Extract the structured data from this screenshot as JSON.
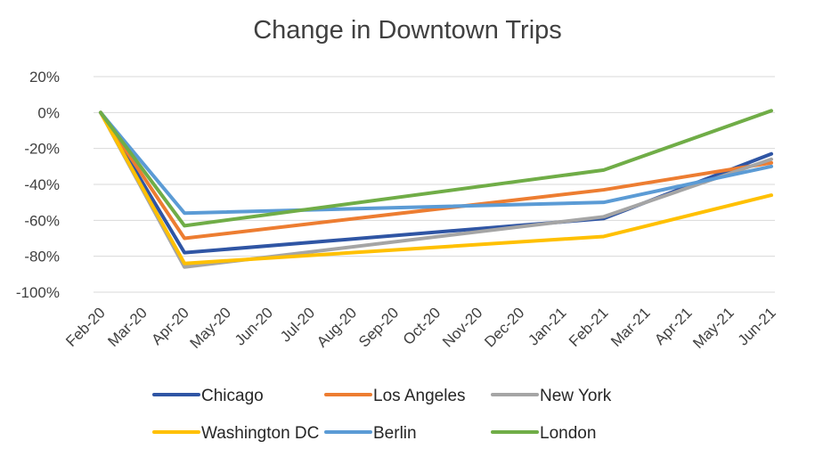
{
  "chart_data": {
    "type": "line",
    "title": "Change in Downtown Trips",
    "xlabel": "",
    "ylabel": "",
    "x": [
      "Feb-20",
      "Mar-20",
      "Apr-20",
      "May-20",
      "Jun-20",
      "Jul-20",
      "Aug-20",
      "Sep-20",
      "Oct-20",
      "Nov-20",
      "Dec-20",
      "Jan-21",
      "Feb-21",
      "Mar-21",
      "Apr-21",
      "May-21",
      "Jun-21"
    ],
    "y_ticks": [
      "20%",
      "0%",
      "-20%",
      "-40%",
      "-60%",
      "-80%",
      "-100%"
    ],
    "ylim": [
      -100,
      20
    ],
    "grid": true,
    "legend_position": "bottom",
    "series": [
      {
        "name": "Chicago",
        "color": "#2F55A4",
        "points": [
          [
            0,
            0
          ],
          [
            2,
            -78
          ],
          [
            12,
            -59
          ],
          [
            16,
            -23
          ]
        ]
      },
      {
        "name": "Los Angeles",
        "color": "#ED7D31",
        "points": [
          [
            0,
            0
          ],
          [
            2,
            -70
          ],
          [
            12,
            -43
          ],
          [
            16,
            -28
          ]
        ]
      },
      {
        "name": "New York",
        "color": "#A5A5A5",
        "points": [
          [
            0,
            0
          ],
          [
            2,
            -86
          ],
          [
            12,
            -58
          ],
          [
            16,
            -26
          ]
        ]
      },
      {
        "name": "Washington DC",
        "color": "#FFC000",
        "points": [
          [
            0,
            0
          ],
          [
            2,
            -84
          ],
          [
            12,
            -69
          ],
          [
            16,
            -46
          ]
        ]
      },
      {
        "name": "Berlin",
        "color": "#5B9BD5",
        "points": [
          [
            0,
            0
          ],
          [
            2,
            -56
          ],
          [
            12,
            -50
          ],
          [
            16,
            -30
          ]
        ]
      },
      {
        "name": "London",
        "color": "#70AD47",
        "points": [
          [
            0,
            0
          ],
          [
            2,
            -63
          ],
          [
            12,
            -32
          ],
          [
            16,
            1
          ]
        ]
      }
    ]
  }
}
